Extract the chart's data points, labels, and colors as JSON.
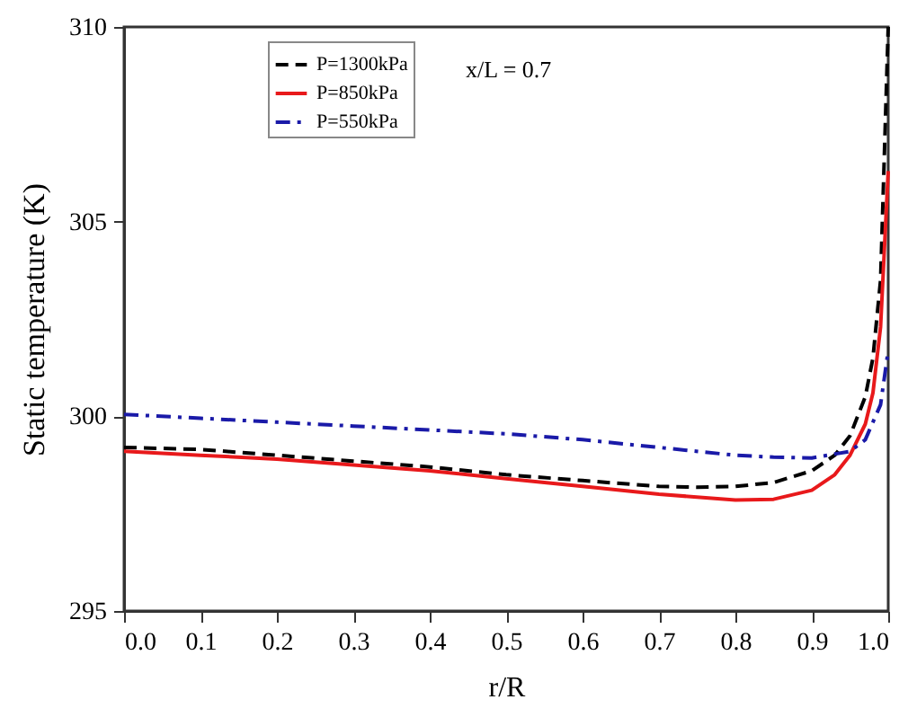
{
  "chart_data": {
    "type": "line",
    "xlabel": "r/R",
    "ylabel": "Static temperature (K)",
    "annotations": [
      "x/L = 0.7"
    ],
    "xlim": [
      0,
      1
    ],
    "ylim": [
      295,
      310
    ],
    "xticks": [
      {
        "value": 0,
        "label": "0.0"
      },
      0.1,
      0.2,
      0.3,
      0.4,
      0.5,
      0.6,
      0.7,
      0.8,
      0.9,
      {
        "value": 1,
        "label": "1.0"
      }
    ],
    "yticks": [
      295,
      300,
      305,
      310
    ],
    "grid": false,
    "legend": "top left",
    "marker": "none",
    "series": [
      {
        "name": "P=1300kPa",
        "color": "#000000",
        "line_style": "dashed",
        "x": [
          0,
          0.1,
          0.2,
          0.3,
          0.4,
          0.5,
          0.6,
          0.7,
          0.75,
          0.8,
          0.85,
          0.9,
          0.93,
          0.95,
          0.97,
          0.98,
          0.99,
          1.0
        ],
        "values": [
          299.2,
          299.15,
          299.0,
          298.85,
          298.7,
          298.5,
          298.35,
          298.2,
          298.18,
          298.2,
          298.3,
          298.6,
          299.0,
          299.5,
          300.5,
          301.5,
          303.5,
          310
        ]
      },
      {
        "name": "P=850kPa",
        "color": "#e8191b",
        "line_style": "solid",
        "x": [
          0,
          0.1,
          0.2,
          0.3,
          0.4,
          0.5,
          0.6,
          0.7,
          0.8,
          0.85,
          0.9,
          0.93,
          0.95,
          0.97,
          0.98,
          0.99,
          1.0
        ],
        "values": [
          299.1,
          299.0,
          298.9,
          298.75,
          298.6,
          298.4,
          298.2,
          298.0,
          297.85,
          297.87,
          298.1,
          298.5,
          299.0,
          299.8,
          300.6,
          302.3,
          306.3
        ]
      },
      {
        "name": "P=550kPa",
        "color": "#1a1aa8",
        "line_style": "dashdot",
        "x": [
          0,
          0.1,
          0.2,
          0.3,
          0.4,
          0.5,
          0.6,
          0.7,
          0.8,
          0.85,
          0.9,
          0.95,
          0.97,
          0.99,
          1.0
        ],
        "values": [
          300.05,
          299.95,
          299.85,
          299.75,
          299.65,
          299.55,
          299.4,
          299.2,
          299.0,
          298.95,
          298.93,
          299.1,
          299.4,
          300.3,
          301.7
        ]
      }
    ]
  }
}
